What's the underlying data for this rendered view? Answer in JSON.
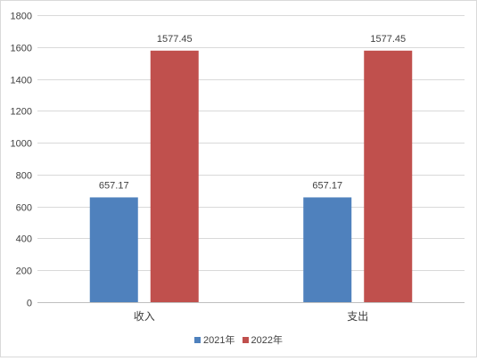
{
  "chart_data": {
    "type": "bar",
    "categories": [
      "收入",
      "支出"
    ],
    "series": [
      {
        "name": "2021年",
        "values": [
          657.17,
          657.17
        ],
        "color": "#4f81bd"
      },
      {
        "name": "2022年",
        "values": [
          1577.45,
          1577.45
        ],
        "color": "#c0504d"
      }
    ],
    "ylim": [
      0,
      1800
    ],
    "yticks": [
      "0",
      "200",
      "400",
      "600",
      "800",
      "1000",
      "1200",
      "1400",
      "1600",
      "1800"
    ],
    "data_labels": [
      [
        "657.17",
        "657.17"
      ],
      [
        "1577.45",
        "1577.45"
      ]
    ],
    "grid": true,
    "legend_position": "bottom",
    "title": "",
    "xlabel": "",
    "ylabel": ""
  }
}
